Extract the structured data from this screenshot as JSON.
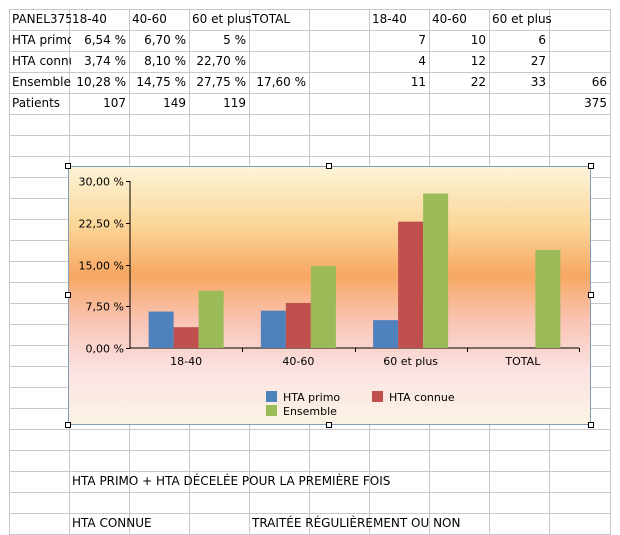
{
  "table": {
    "rows": [
      [
        "PANEL375",
        "18-40",
        "40-60",
        "60 et plus",
        "TOTAL",
        "",
        "18-40",
        "40-60",
        "60 et plus",
        ""
      ],
      [
        "HTA primo",
        "6,54 %",
        "6,70 %",
        "5 %",
        "",
        "",
        "7",
        "10",
        "6",
        ""
      ],
      [
        "HTA connue",
        "3,74 %",
        "8,10 %",
        "22,70 %",
        "",
        "",
        "4",
        "12",
        "27",
        ""
      ],
      [
        "Ensemble",
        "10,28 %",
        "14,75 %",
        "27,75 %",
        "17,60 %",
        "",
        "11",
        "22",
        "33",
        "66"
      ],
      [
        "Patients",
        "107",
        "149",
        "119",
        "",
        "",
        "",
        "",
        "",
        "375"
      ]
    ]
  },
  "notes": [
    {
      "col": 1,
      "row": 22,
      "text": "HTA PRIMO + HTA DÉCELÉE POUR LA PREMIÈRE FOIS"
    },
    {
      "col": 1,
      "row": 24,
      "text": "HTA CONNUE"
    },
    {
      "col": 4,
      "row": 24,
      "text": "TRAITÉE RÉGULIÈREMENT OU NON"
    }
  ],
  "chart_data": {
    "type": "bar",
    "categories": [
      "18-40",
      "40-60",
      "60 et plus",
      "TOTAL"
    ],
    "series": [
      {
        "name": "HTA primo",
        "values": [
          6.54,
          6.7,
          5,
          null
        ],
        "color": "#4f81bd"
      },
      {
        "name": "HTA connue",
        "values": [
          3.74,
          8.1,
          22.7,
          null
        ],
        "color": "#c0504d"
      },
      {
        "name": "Ensemble",
        "values": [
          10.28,
          14.75,
          27.75,
          17.6
        ],
        "color": "#9bbb59"
      }
    ],
    "ylim": [
      0,
      30
    ],
    "yticks": [
      0,
      7.5,
      15,
      22.5,
      30
    ],
    "ytick_labels": [
      "0,00 %",
      "7,50 %",
      "15,00 %",
      "22,50 %",
      "30,00 %"
    ],
    "legend_position": "bottom",
    "grid": false
  }
}
